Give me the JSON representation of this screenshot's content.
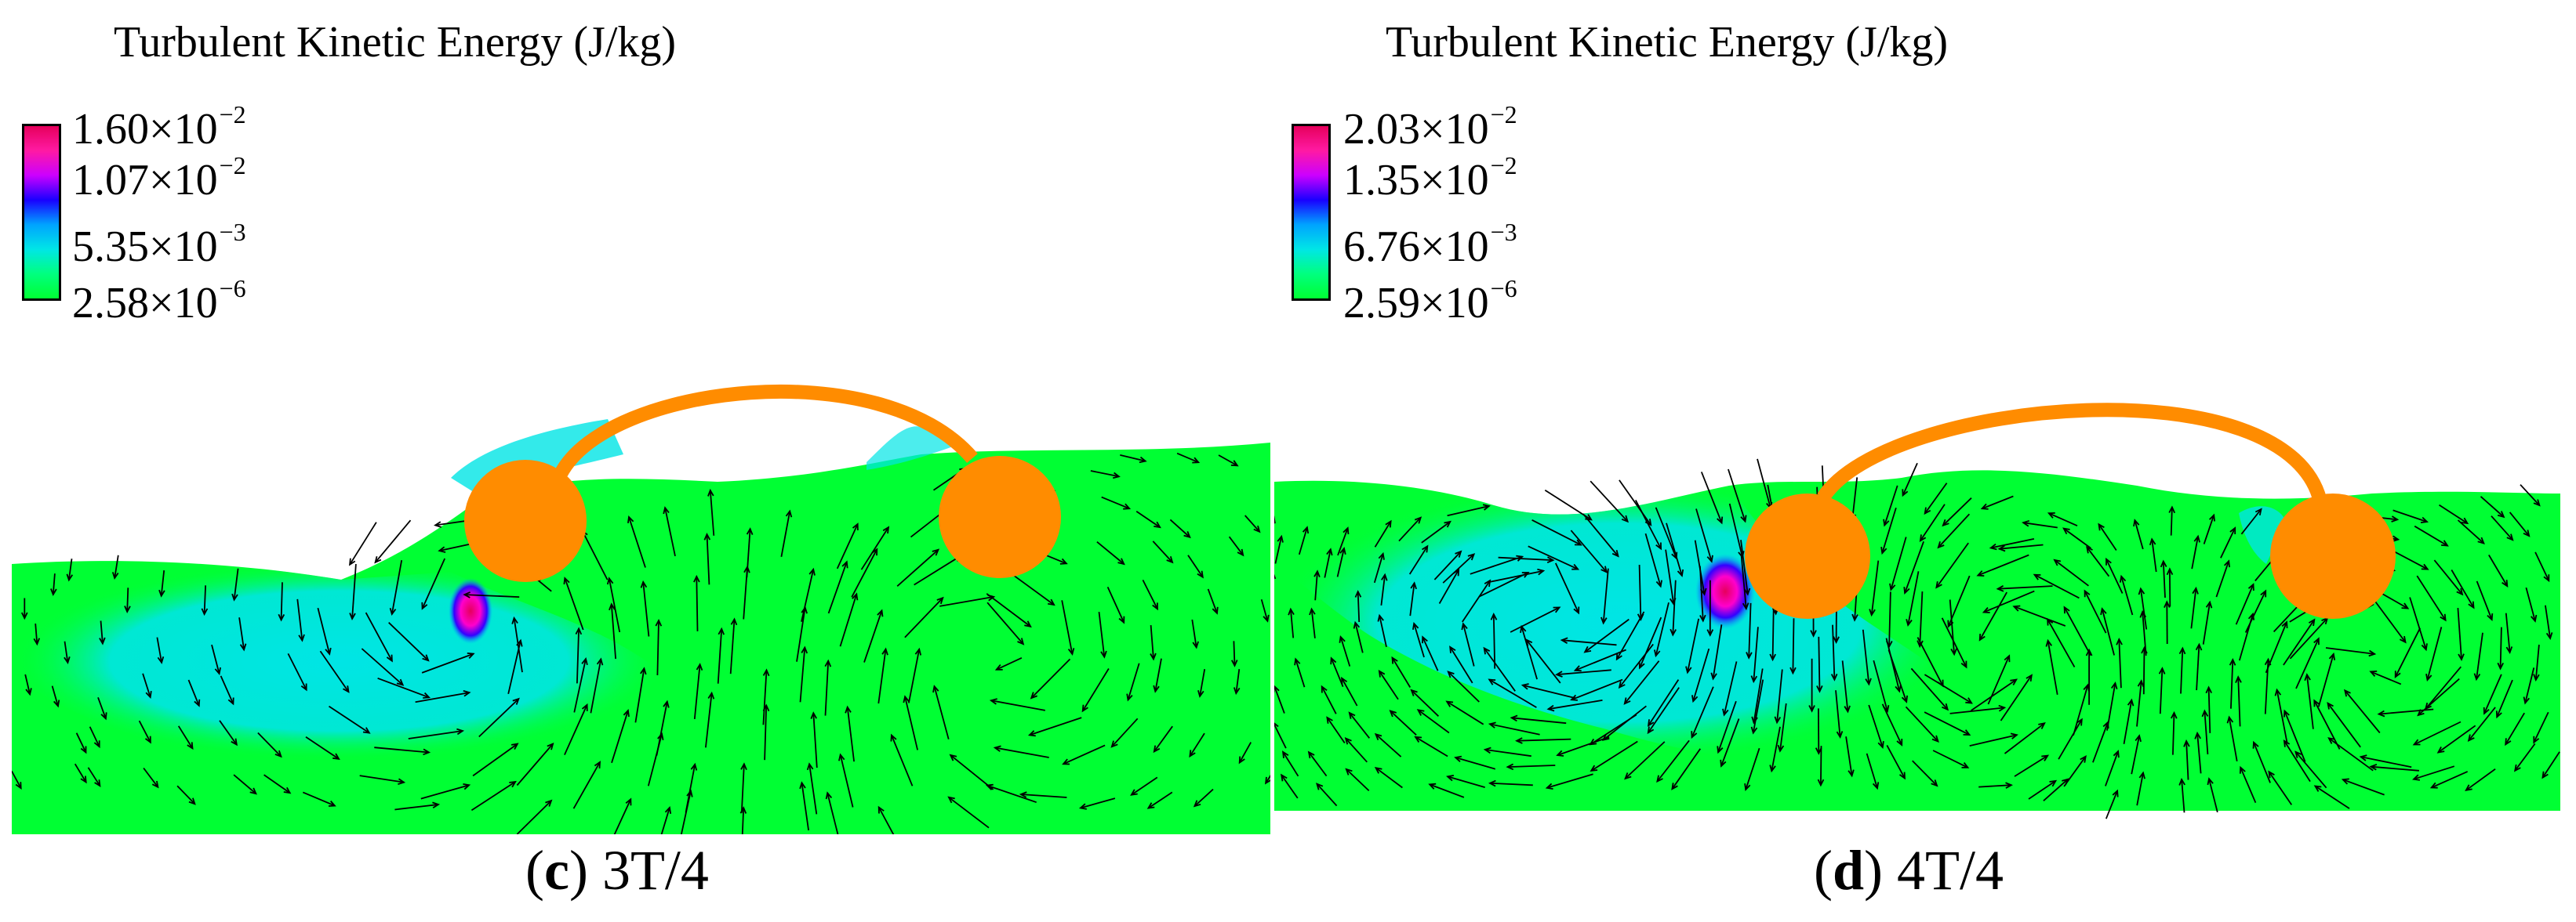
{
  "colors": {
    "flow": "#00ff33",
    "low_tke": "#00e5e5",
    "high_tke": "#ff00cc",
    "peak_tke": "#e6005c",
    "structure": "#ff8c00",
    "vectors": "#000000",
    "colorbar_stops": [
      "#e6005c",
      "#ff1aa3",
      "#cc00ff",
      "#1a00ff",
      "#00a3ff",
      "#00e6e6",
      "#00ff7f",
      "#00ff33"
    ]
  },
  "panels": [
    {
      "legend_title": "Turbulent Kinetic Energy (J/kg)",
      "ticks": [
        {
          "mantissa": "1.60",
          "exponent": "−2"
        },
        {
          "mantissa": "1.07",
          "exponent": "−2"
        },
        {
          "mantissa": "5.35",
          "exponent": "−3"
        },
        {
          "mantissa": "2.58",
          "exponent": "−6"
        }
      ],
      "caption_letter": "c",
      "caption_phase": "3T/4"
    },
    {
      "legend_title": "Turbulent Kinetic Energy (J/kg)",
      "ticks": [
        {
          "mantissa": "2.03",
          "exponent": "−2"
        },
        {
          "mantissa": "1.35",
          "exponent": "−2"
        },
        {
          "mantissa": "6.76",
          "exponent": "−3"
        },
        {
          "mantissa": "2.59",
          "exponent": "−6"
        }
      ],
      "caption_letter": "d",
      "caption_phase": "4T/4"
    }
  ]
}
